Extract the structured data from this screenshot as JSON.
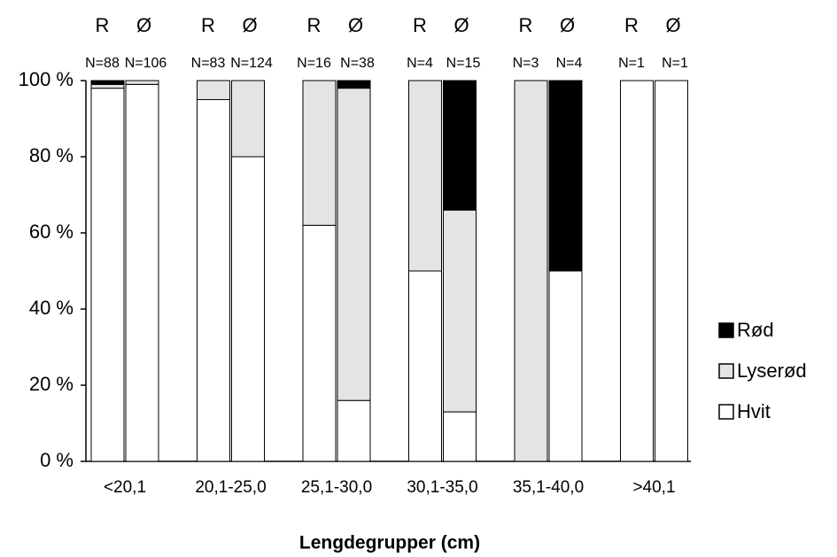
{
  "chart_data": {
    "type": "stacked_bar",
    "x_label": "Lengdegrupper (cm)",
    "groups": [
      "<20,1",
      "20,1-25,0",
      "25,1-30,0",
      "30,1-35,0",
      "35,1-40,0",
      ">40,1"
    ],
    "categories": [
      "R",
      "Ø",
      "R",
      "Ø",
      "R",
      "Ø",
      "R",
      "Ø",
      "R",
      "Ø",
      "R",
      "Ø"
    ],
    "n_labels": [
      "N=88",
      "N=106",
      "N=83",
      "N=124",
      "N=16",
      "N=38",
      "N=4",
      "N=15",
      "N=3",
      "N=4",
      "N=1",
      "N=1"
    ],
    "series": [
      {
        "name": "Hvit",
        "color": "#ffffff",
        "values": [
          98,
          99,
          95,
          80,
          62,
          16,
          50,
          13,
          0,
          50,
          100,
          100
        ]
      },
      {
        "name": "Lyserød",
        "color": "#e4e4e4",
        "values": [
          1,
          1,
          5,
          20,
          38,
          82,
          50,
          53,
          100,
          0,
          0,
          0
        ]
      },
      {
        "name": "Rød",
        "color": "#000000",
        "values": [
          1,
          0,
          0,
          0,
          0,
          2,
          0,
          34,
          0,
          50,
          0,
          0
        ]
      }
    ],
    "ylim": [
      0,
      100
    ],
    "yticks": [
      {
        "value": 0,
        "label": "0 %"
      },
      {
        "value": 20,
        "label": "20 %"
      },
      {
        "value": 40,
        "label": "40 %"
      },
      {
        "value": 60,
        "label": "60 %"
      },
      {
        "value": 80,
        "label": "80 %"
      },
      {
        "value": 100,
        "label": "100 %"
      }
    ],
    "legend": "right"
  }
}
